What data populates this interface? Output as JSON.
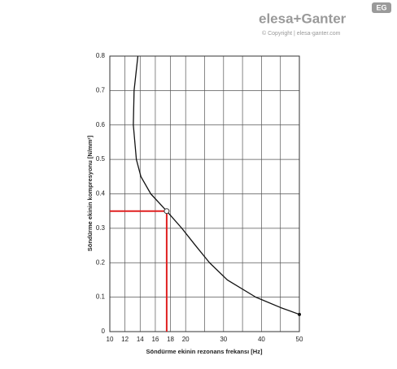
{
  "logo": {
    "brand": "elesa+Ganter",
    "copyright": "© Copyright | elesa-ganter.com",
    "badge": "EG"
  },
  "chart_data": {
    "type": "line",
    "x_label": "Söndürme ekinin rezonans frekansı [Hz]",
    "y_label": "Söndürme ekinin kompresyonu [N/mm²]",
    "x": [
      13.7,
      13.2,
      13.1,
      13.5,
      14.1,
      15.4,
      17.5,
      19.5,
      22.6,
      26.3,
      31,
      38.5,
      45,
      50
    ],
    "series": [
      {
        "name": "curve",
        "color": "#111111",
        "values": [
          0.8,
          0.7,
          0.6,
          0.5,
          0.45,
          0.4,
          0.35,
          0.3,
          0.25,
          0.2,
          0.15,
          0.1,
          0.07,
          0.05
        ]
      }
    ],
    "xlim": [
      10,
      50
    ],
    "ylim": [
      0,
      0.8
    ],
    "xticks": [
      10,
      12,
      14,
      16,
      18,
      20,
      30,
      40,
      50
    ],
    "x_minor_gridlines": [
      25,
      35,
      45
    ],
    "yticks": [
      0,
      0.1,
      0.2,
      0.3,
      0.4,
      0.5,
      0.6,
      0.7,
      0.8
    ],
    "xscale": {
      "type": "piecewise",
      "domain": [
        10,
        20,
        50
      ],
      "fraction": [
        0,
        0.4,
        1
      ]
    },
    "grid": true,
    "highlight": {
      "x": 17.5,
      "y": 0.35,
      "color": "#e02020"
    }
  }
}
